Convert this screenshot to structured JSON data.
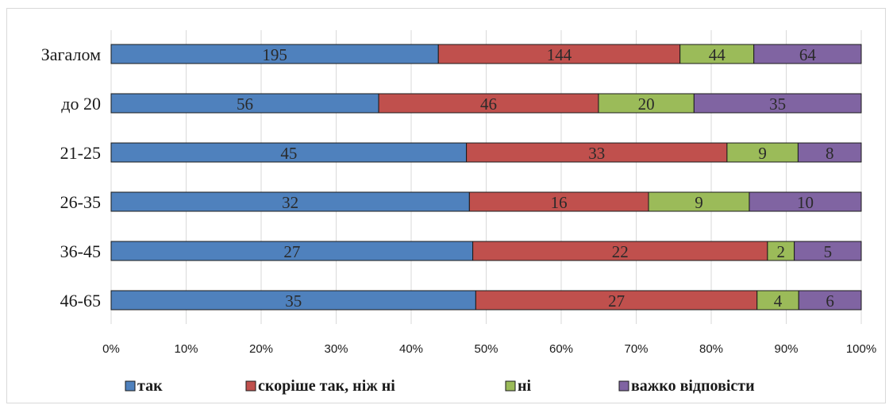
{
  "chart_data": {
    "type": "bar",
    "orientation": "horizontal",
    "stacked": "percent",
    "categories": [
      "Загалом",
      "до 20",
      "21-25",
      "26-35",
      "36-45",
      "46-65"
    ],
    "series": [
      {
        "name": "так",
        "color": "#4f81bd",
        "values": [
          195,
          56,
          45,
          32,
          27,
          35
        ]
      },
      {
        "name": "скоріше так, ніж ні",
        "color": "#c0504d",
        "values": [
          144,
          46,
          33,
          16,
          22,
          27
        ]
      },
      {
        "name": "ні",
        "color": "#9bbb59",
        "values": [
          44,
          20,
          9,
          9,
          2,
          4
        ]
      },
      {
        "name": "важко відповісти",
        "color": "#8064a2",
        "values": [
          64,
          35,
          8,
          10,
          5,
          6
        ]
      }
    ],
    "xticks": [
      "0%",
      "10%",
      "20%",
      "30%",
      "40%",
      "50%",
      "60%",
      "70%",
      "80%",
      "90%",
      "100%"
    ],
    "xlim": [
      0,
      100
    ],
    "grid": true,
    "legend": "bottom"
  }
}
